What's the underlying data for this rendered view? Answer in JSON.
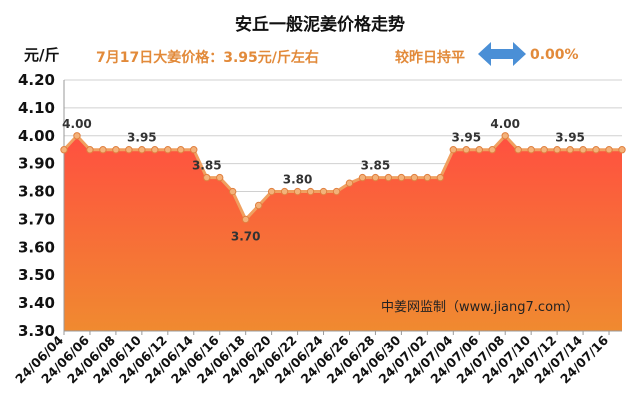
{
  "header": {
    "title": "安丘一般泥姜价格走势",
    "unit": "元/斤",
    "price_info": "7月17日大姜价格：3.95元/斤左右",
    "compare_label": "较昨日持平",
    "compare_icon": "left-right-arrow-icon",
    "change_value": "0.00%"
  },
  "watermark": "中姜网监制（www.jiang7.com）",
  "colors": {
    "line": "#f0a060",
    "marker_fill": "#f3b27a",
    "area_top": "#ff5040",
    "area_bottom": "#f08a30",
    "accent_text": "#e28a3a",
    "arrow": "#4a8fd6"
  },
  "chart_data": {
    "type": "area",
    "title": "安丘一般泥姜价格走势",
    "ylabel": "元/斤",
    "ylim": [
      3.3,
      4.2
    ],
    "yticks": [
      3.3,
      3.4,
      3.5,
      3.6,
      3.7,
      3.8,
      3.9,
      4.0,
      4.1,
      4.2
    ],
    "ytick_labels": [
      "3.30",
      "3.40",
      "3.50",
      "3.60",
      "3.70",
      "3.80",
      "3.90",
      "4.00",
      "4.10",
      "4.20"
    ],
    "grid": true,
    "x_tick_labels": [
      "24/06/04",
      "24/06/06",
      "24/06/08",
      "24/06/10",
      "24/06/12",
      "24/06/14",
      "24/06/16",
      "24/06/18",
      "24/06/20",
      "24/06/22",
      "24/06/24",
      "24/06/26",
      "24/06/28",
      "24/06/30",
      "24/07/02",
      "24/07/04",
      "24/07/06",
      "24/07/08",
      "24/07/10",
      "24/07/12",
      "24/07/14",
      "24/07/16"
    ],
    "series": [
      {
        "x": [
          "24/06/04",
          "24/06/05",
          "24/06/06",
          "24/06/07",
          "24/06/08",
          "24/06/09",
          "24/06/10",
          "24/06/11",
          "24/06/12",
          "24/06/13",
          "24/06/14",
          "24/06/15",
          "24/06/16",
          "24/06/17",
          "24/06/18",
          "24/06/19",
          "24/06/20",
          "24/06/21",
          "24/06/22",
          "24/06/23",
          "24/06/24",
          "24/06/25",
          "24/06/26",
          "24/06/27",
          "24/06/28",
          "24/06/29",
          "24/06/30",
          "24/07/01",
          "24/07/02",
          "24/07/03",
          "24/07/04",
          "24/07/05",
          "24/07/06",
          "24/07/07",
          "24/07/08",
          "24/07/09",
          "24/07/10",
          "24/07/11",
          "24/07/12",
          "24/07/13",
          "24/07/14",
          "24/07/15",
          "24/07/16",
          "24/07/17"
        ],
        "values": [
          3.95,
          4.0,
          3.95,
          3.95,
          3.95,
          3.95,
          3.95,
          3.95,
          3.95,
          3.95,
          3.95,
          3.85,
          3.85,
          3.8,
          3.7,
          3.75,
          3.8,
          3.8,
          3.8,
          3.8,
          3.8,
          3.8,
          3.83,
          3.85,
          3.85,
          3.85,
          3.85,
          3.85,
          3.85,
          3.85,
          3.95,
          3.95,
          3.95,
          3.95,
          4.0,
          3.95,
          3.95,
          3.95,
          3.95,
          3.95,
          3.95,
          3.95,
          3.95,
          3.95
        ]
      }
    ],
    "data_labels": [
      {
        "x": "24/06/05",
        "text": "4.00",
        "pos": "above"
      },
      {
        "x": "24/06/10",
        "text": "3.95",
        "pos": "above"
      },
      {
        "x": "24/06/15",
        "text": "3.85",
        "pos": "above"
      },
      {
        "x": "24/06/18",
        "text": "3.70",
        "pos": "below"
      },
      {
        "x": "24/06/22",
        "text": "3.80",
        "pos": "above"
      },
      {
        "x": "24/06/28",
        "text": "3.85",
        "pos": "above"
      },
      {
        "x": "24/07/05",
        "text": "3.95",
        "pos": "above"
      },
      {
        "x": "24/07/08",
        "text": "4.00",
        "pos": "above"
      },
      {
        "x": "24/07/13",
        "text": "3.95",
        "pos": "above"
      }
    ]
  }
}
